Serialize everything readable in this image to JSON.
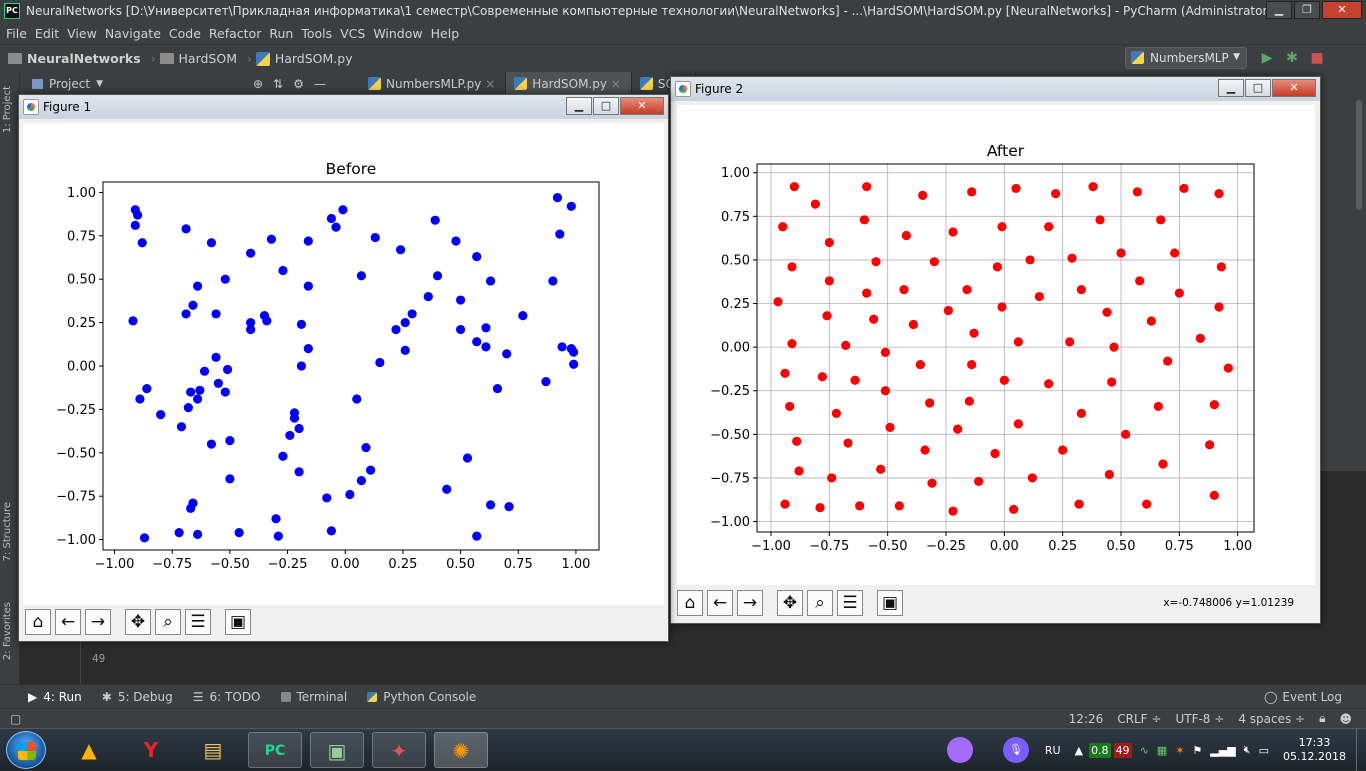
{
  "window": {
    "title": "NeuralNetworks [D:\\Университет\\Прикладная информатика\\1 семестр\\Современные компьютерные технологии\\NeuralNetworks] - ...\\HardSOM\\HardSOM.py [NeuralNetworks] - PyCharm (Administrator)",
    "app_icon": "PC"
  },
  "menu": [
    "File",
    "Edit",
    "View",
    "Navigate",
    "Code",
    "Refactor",
    "Run",
    "Tools",
    "VCS",
    "Window",
    "Help"
  ],
  "breadcrumbs": [
    "NeuralNetworks",
    "HardSOM",
    "HardSOM.py"
  ],
  "run_config": "NumbersMLP",
  "project_label": "Project",
  "editor_tabs": [
    "NumbersMLP.py",
    "HardSOM.py",
    "SOM"
  ],
  "line_number": "49",
  "bottom_tabs": [
    {
      "label": "4: Run",
      "icon": "run-icon"
    },
    {
      "label": "5: Debug",
      "icon": "debug-icon"
    },
    {
      "label": "6: TODO",
      "icon": "todo-icon"
    },
    {
      "label": "Terminal",
      "icon": "terminal-icon"
    },
    {
      "label": "Python Console",
      "icon": "python-console-icon"
    }
  ],
  "event_log": "Event Log",
  "status": {
    "position": "12:26",
    "line_sep": "CRLF ÷",
    "encoding": "UTF-8 ÷",
    "indent": "4 spaces ÷"
  },
  "side_tabs": {
    "project": "1: Project",
    "structure": "7: Structure",
    "favorites": "2: Favorites"
  },
  "tray": {
    "lang": "RU",
    "cpu": "0.8",
    "mem": "49",
    "time": "17:33",
    "date": "05.12.2018"
  },
  "colors": {
    "before_points": "#0000ff",
    "after_points": "#ff0000"
  },
  "figure1": {
    "title": "Figure 1",
    "toolbar": [
      "home-icon",
      "back-icon",
      "forward-icon",
      "pan-icon",
      "zoom-icon",
      "configure-icon",
      "save-icon"
    ],
    "chart_data": {
      "type": "scatter",
      "title": "Before",
      "xlim": [
        -1.05,
        1.1
      ],
      "ylim": [
        -1.06,
        1.06
      ],
      "xticks": [
        "−1.00",
        "−0.75",
        "−0.50",
        "−0.25",
        "0.00",
        "0.25",
        "0.50",
        "0.75",
        "1.00"
      ],
      "yticks": [
        "1.00",
        "0.75",
        "0.50",
        "0.25",
        "0.00",
        "−0.25",
        "−0.50",
        "−0.75",
        "−1.00"
      ],
      "grid": false,
      "color": "#0000ff",
      "points": [
        [
          -0.91,
          0.9
        ],
        [
          -0.9,
          0.87
        ],
        [
          -0.91,
          0.81
        ],
        [
          -0.88,
          0.71
        ],
        [
          -0.92,
          0.26
        ],
        [
          -0.89,
          -0.19
        ],
        [
          -0.86,
          -0.13
        ],
        [
          -0.87,
          -0.99
        ],
        [
          -0.8,
          -0.28
        ],
        [
          -0.72,
          -0.96
        ],
        [
          -0.71,
          -0.35
        ],
        [
          -0.69,
          0.79
        ],
        [
          -0.69,
          0.3
        ],
        [
          -0.68,
          -0.24
        ],
        [
          -0.67,
          -0.15
        ],
        [
          -0.66,
          0.35
        ],
        [
          -0.67,
          -0.82
        ],
        [
          -0.66,
          -0.79
        ],
        [
          -0.64,
          0.46
        ],
        [
          -0.64,
          -0.19
        ],
        [
          -0.63,
          -0.14
        ],
        [
          -0.64,
          -0.97
        ],
        [
          -0.61,
          -0.03
        ],
        [
          -0.58,
          0.71
        ],
        [
          -0.58,
          -0.45
        ],
        [
          -0.56,
          0.3
        ],
        [
          -0.56,
          0.05
        ],
        [
          -0.55,
          -0.1
        ],
        [
          -0.52,
          0.5
        ],
        [
          -0.52,
          -0.15
        ],
        [
          -0.51,
          -0.02
        ],
        [
          -0.5,
          -0.43
        ],
        [
          -0.5,
          -0.65
        ],
        [
          -0.46,
          -0.96
        ],
        [
          -0.41,
          0.65
        ],
        [
          -0.41,
          0.25
        ],
        [
          -0.41,
          0.21
        ],
        [
          -0.35,
          0.29
        ],
        [
          -0.34,
          0.26
        ],
        [
          -0.32,
          0.73
        ],
        [
          -0.3,
          -0.88
        ],
        [
          -0.29,
          -0.98
        ],
        [
          -0.27,
          0.55
        ],
        [
          -0.27,
          -0.52
        ],
        [
          -0.24,
          -0.4
        ],
        [
          -0.22,
          -0.27
        ],
        [
          -0.22,
          -0.3
        ],
        [
          -0.2,
          -0.36
        ],
        [
          -0.2,
          -0.61
        ],
        [
          -0.19,
          0.24
        ],
        [
          -0.19,
          0.0
        ],
        [
          -0.16,
          0.72
        ],
        [
          -0.16,
          0.46
        ],
        [
          -0.16,
          0.1
        ],
        [
          -0.08,
          -0.76
        ],
        [
          -0.06,
          0.85
        ],
        [
          -0.06,
          -0.95
        ],
        [
          -0.04,
          0.8
        ],
        [
          -0.01,
          0.9
        ],
        [
          0.02,
          -0.74
        ],
        [
          0.05,
          -0.19
        ],
        [
          0.07,
          0.52
        ],
        [
          0.07,
          -0.66
        ],
        [
          0.09,
          -0.47
        ],
        [
          0.11,
          -0.6
        ],
        [
          0.13,
          0.74
        ],
        [
          0.15,
          0.02
        ],
        [
          0.22,
          0.21
        ],
        [
          0.24,
          0.67
        ],
        [
          0.26,
          0.25
        ],
        [
          0.26,
          0.09
        ],
        [
          0.29,
          0.3
        ],
        [
          0.36,
          0.4
        ],
        [
          0.39,
          0.84
        ],
        [
          0.4,
          0.52
        ],
        [
          0.44,
          -0.71
        ],
        [
          0.48,
          0.72
        ],
        [
          0.5,
          0.38
        ],
        [
          0.5,
          0.21
        ],
        [
          0.53,
          -0.53
        ],
        [
          0.57,
          0.63
        ],
        [
          0.57,
          0.14
        ],
        [
          0.57,
          -0.98
        ],
        [
          0.61,
          0.11
        ],
        [
          0.61,
          0.22
        ],
        [
          0.63,
          0.49
        ],
        [
          0.63,
          -0.8
        ],
        [
          0.66,
          -0.13
        ],
        [
          0.7,
          0.07
        ],
        [
          0.71,
          -0.81
        ],
        [
          0.77,
          0.29
        ],
        [
          0.87,
          -0.09
        ],
        [
          0.9,
          0.49
        ],
        [
          0.92,
          0.97
        ],
        [
          0.93,
          0.76
        ],
        [
          0.94,
          0.11
        ],
        [
          0.98,
          0.1
        ],
        [
          0.98,
          0.92
        ],
        [
          0.99,
          0.08
        ],
        [
          0.99,
          0.01
        ]
      ]
    }
  },
  "figure2": {
    "title": "Figure 2",
    "toolbar": [
      "home-icon",
      "back-icon",
      "forward-icon",
      "pan-icon",
      "zoom-icon",
      "configure-icon",
      "save-icon"
    ],
    "coord_readout": "x=-0.748006     y=1.01239",
    "chart_data": {
      "type": "scatter",
      "title": "After",
      "xlim": [
        -1.06,
        1.07
      ],
      "ylim": [
        -1.06,
        1.05
      ],
      "xticks": [
        "−1.00",
        "−0.75",
        "−0.50",
        "−0.25",
        "0.00",
        "0.25",
        "0.50",
        "0.75",
        "1.00"
      ],
      "yticks": [
        "1.00",
        "0.75",
        "0.50",
        "0.25",
        "0.00",
        "−0.25",
        "−0.50",
        "−0.75",
        "−1.00"
      ],
      "grid": true,
      "color": "#ff0000",
      "points": [
        [
          -0.9,
          0.92
        ],
        [
          -0.81,
          0.82
        ],
        [
          -0.59,
          0.92
        ],
        [
          -0.35,
          0.87
        ],
        [
          -0.14,
          0.89
        ],
        [
          0.05,
          0.91
        ],
        [
          0.22,
          0.88
        ],
        [
          0.38,
          0.92
        ],
        [
          0.57,
          0.89
        ],
        [
          0.77,
          0.91
        ],
        [
          0.92,
          0.88
        ],
        [
          -0.95,
          0.69
        ],
        [
          -0.75,
          0.6
        ],
        [
          -0.6,
          0.73
        ],
        [
          -0.42,
          0.64
        ],
        [
          -0.22,
          0.66
        ],
        [
          -0.01,
          0.69
        ],
        [
          0.19,
          0.69
        ],
        [
          0.41,
          0.73
        ],
        [
          0.67,
          0.73
        ],
        [
          -0.91,
          0.46
        ],
        [
          -0.75,
          0.38
        ],
        [
          -0.55,
          0.49
        ],
        [
          -0.3,
          0.49
        ],
        [
          -0.16,
          0.33
        ],
        [
          -0.03,
          0.46
        ],
        [
          0.11,
          0.5
        ],
        [
          0.29,
          0.51
        ],
        [
          0.5,
          0.54
        ],
        [
          0.73,
          0.54
        ],
        [
          0.93,
          0.46
        ],
        [
          -0.97,
          0.26
        ],
        [
          -0.76,
          0.18
        ],
        [
          -0.59,
          0.31
        ],
        [
          -0.43,
          0.33
        ],
        [
          -0.24,
          0.21
        ],
        [
          -0.01,
          0.23
        ],
        [
          0.15,
          0.29
        ],
        [
          0.33,
          0.33
        ],
        [
          0.58,
          0.38
        ],
        [
          0.75,
          0.31
        ],
        [
          0.92,
          0.23
        ],
        [
          -0.91,
          0.02
        ],
        [
          -0.68,
          0.01
        ],
        [
          -0.56,
          0.16
        ],
        [
          -0.39,
          0.13
        ],
        [
          -0.13,
          0.08
        ],
        [
          0.06,
          0.03
        ],
        [
          0.28,
          0.03
        ],
        [
          0.44,
          0.2
        ],
        [
          0.47,
          0.0
        ],
        [
          0.63,
          0.15
        ],
        [
          0.84,
          0.05
        ],
        [
          -0.94,
          -0.15
        ],
        [
          -0.78,
          -0.17
        ],
        [
          -0.64,
          -0.19
        ],
        [
          -0.51,
          -0.03
        ],
        [
          -0.36,
          -0.1
        ],
        [
          -0.14,
          -0.1
        ],
        [
          0.0,
          -0.19
        ],
        [
          0.19,
          -0.21
        ],
        [
          0.46,
          -0.2
        ],
        [
          0.7,
          -0.08
        ],
        [
          0.96,
          -0.12
        ],
        [
          -0.92,
          -0.34
        ],
        [
          -0.72,
          -0.38
        ],
        [
          -0.51,
          -0.25
        ],
        [
          -0.32,
          -0.32
        ],
        [
          -0.15,
          -0.31
        ],
        [
          0.06,
          -0.44
        ],
        [
          0.33,
          -0.38
        ],
        [
          0.52,
          -0.5
        ],
        [
          0.66,
          -0.34
        ],
        [
          0.9,
          -0.33
        ],
        [
          -0.89,
          -0.54
        ],
        [
          -0.67,
          -0.55
        ],
        [
          -0.49,
          -0.46
        ],
        [
          -0.34,
          -0.59
        ],
        [
          -0.2,
          -0.47
        ],
        [
          -0.04,
          -0.61
        ],
        [
          0.25,
          -0.59
        ],
        [
          0.45,
          -0.73
        ],
        [
          0.68,
          -0.67
        ],
        [
          0.88,
          -0.56
        ],
        [
          -0.88,
          -0.71
        ],
        [
          -0.74,
          -0.75
        ],
        [
          -0.53,
          -0.7
        ],
        [
          -0.31,
          -0.78
        ],
        [
          -0.11,
          -0.77
        ],
        [
          0.12,
          -0.75
        ],
        [
          0.32,
          -0.9
        ],
        [
          0.61,
          -0.9
        ],
        [
          0.9,
          -0.85
        ],
        [
          -0.94,
          -0.9
        ],
        [
          -0.79,
          -0.92
        ],
        [
          -0.62,
          -0.91
        ],
        [
          -0.45,
          -0.91
        ],
        [
          -0.22,
          -0.94
        ],
        [
          0.04,
          -0.93
        ]
      ]
    }
  }
}
